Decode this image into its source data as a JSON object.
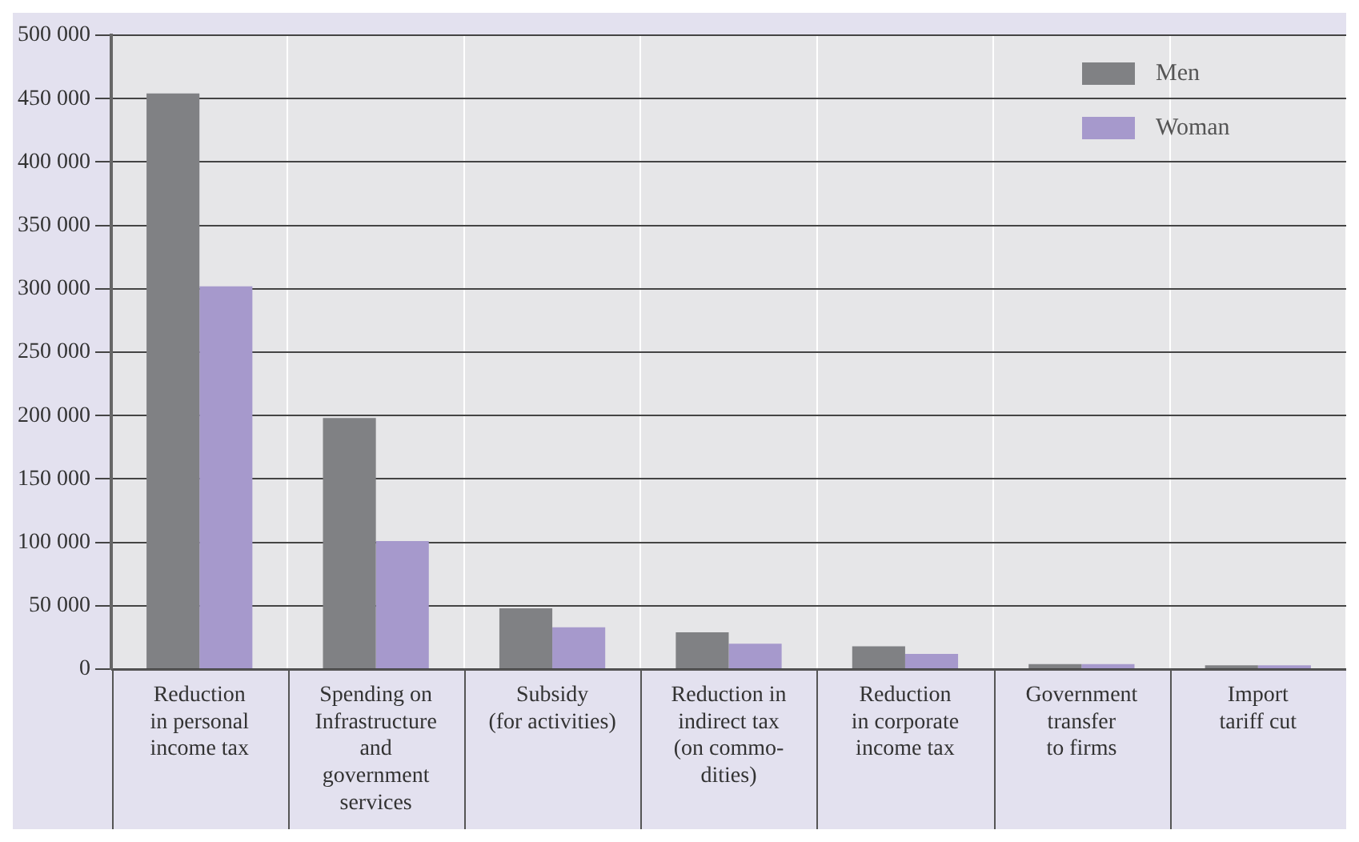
{
  "chart_data": {
    "type": "bar",
    "categories": [
      "Reduction\nin personal\nincome tax",
      "Spending on\nInfrastructure\nand\ngovernment\nservices",
      "Subsidy\n(for activities)",
      "Reduction in\nindirect tax\n(on commo-\ndities)",
      "Reduction\nin corporate\nincome tax",
      "Government\ntransfer\nto firms",
      "Import\ntariff cut"
    ],
    "series": [
      {
        "name": "Men",
        "color": "#808184",
        "values": [
          454000,
          198000,
          48000,
          29000,
          18000,
          4000,
          3000
        ]
      },
      {
        "name": "Woman",
        "color": "#a699cc",
        "values": [
          302000,
          101000,
          33000,
          20000,
          12000,
          4000,
          3000
        ]
      }
    ],
    "ylim": [
      0,
      500000
    ],
    "yticks": [
      {
        "value": 0,
        "label": "0"
      },
      {
        "value": 50000,
        "label": "50 000"
      },
      {
        "value": 100000,
        "label": "100 000"
      },
      {
        "value": 150000,
        "label": "150 000"
      },
      {
        "value": 200000,
        "label": "200 000"
      },
      {
        "value": 250000,
        "label": "250 000"
      },
      {
        "value": 300000,
        "label": "300 000"
      },
      {
        "value": 350000,
        "label": "350 000"
      },
      {
        "value": 400000,
        "label": "400 000"
      },
      {
        "value": 450000,
        "label": "450 000"
      },
      {
        "value": 500000,
        "label": "500 000"
      }
    ],
    "grid": "y",
    "legend": "top right"
  }
}
